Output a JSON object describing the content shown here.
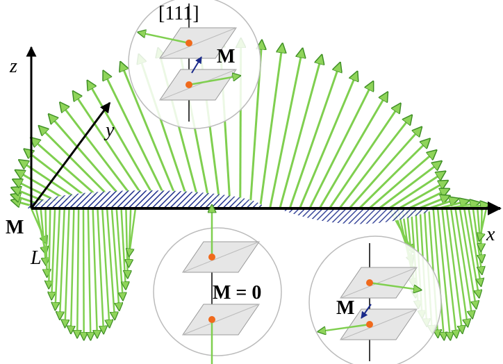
{
  "labels": {
    "direction": "[111]",
    "top_inset_moment": "M",
    "z_axis": "z",
    "y_axis": "y",
    "x_axis": "x",
    "origin_point": "M",
    "origin_line": "L",
    "center_inset_moment": "M = 0",
    "right_inset_moment": "M"
  }
}
